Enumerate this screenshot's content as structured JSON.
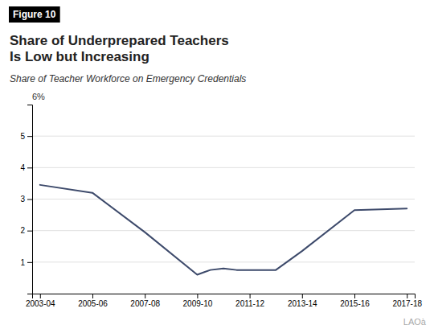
{
  "chart_data": {
    "type": "line",
    "title": "Share of Underprepared Teachers\nIs Low but Increasing",
    "subtitle": "Share of Teacher Workforce on Emergency Credentials",
    "annotations": [
      "Figure 10",
      "6%",
      "LAOà"
    ],
    "x": [
      0,
      2,
      4,
      6,
      6.5,
      7,
      7.5,
      8,
      9,
      10,
      12,
      14
    ],
    "values": [
      3.45,
      3.2,
      1.95,
      0.6,
      0.75,
      0.8,
      0.75,
      0.75,
      0.75,
      1.35,
      2.65,
      2.7
    ],
    "color": "#3d4a6b",
    "xlim": [
      -0.3,
      14.3
    ],
    "xticks": [
      {
        "value": 0,
        "label": "2003-04"
      },
      {
        "value": 2,
        "label": "2005-06"
      },
      {
        "value": 4,
        "label": "2007-08"
      },
      {
        "value": 6,
        "label": "2009-10"
      },
      {
        "value": 8,
        "label": "2011-12"
      },
      {
        "value": 10,
        "label": "2013-14"
      },
      {
        "value": 12,
        "label": "2015-16"
      },
      {
        "value": 14,
        "label": "2017-18"
      }
    ],
    "ylim": [
      0,
      6
    ],
    "yticks": [
      1,
      2,
      3,
      4,
      5
    ],
    "grid": true
  }
}
